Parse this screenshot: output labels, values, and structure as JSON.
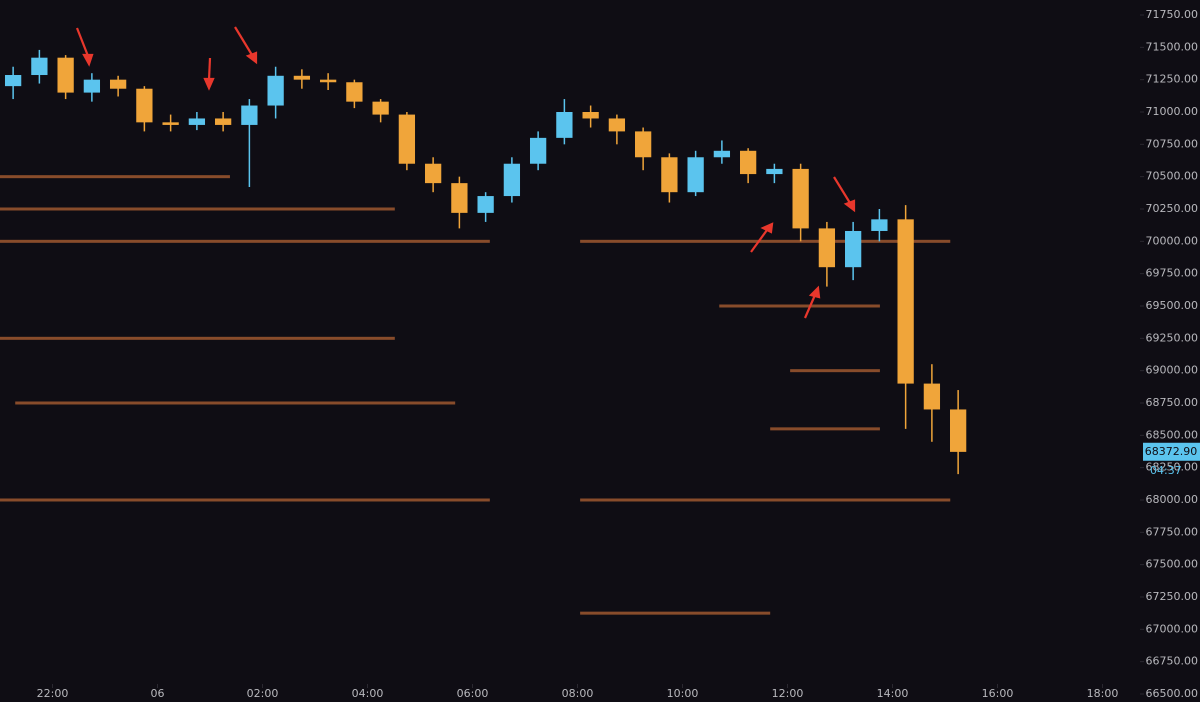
{
  "chart_data": {
    "type": "candlestick",
    "background": "#0f0d14",
    "up_color": "#5bc4ee",
    "down_color": "#f0a53a",
    "heat_color": "#d9773a",
    "x": [
      0.25,
      0.75,
      1.25,
      1.75,
      2.25,
      2.75,
      3.25,
      3.75,
      4.25,
      4.75,
      5.25,
      5.75,
      6.25,
      6.75,
      7.25,
      7.75,
      8.25,
      8.75,
      9.25,
      9.75,
      10.25,
      10.75,
      11.25,
      11.75,
      12.25,
      12.75,
      13.25,
      13.75,
      14.25,
      14.75,
      15.25,
      15.75,
      16.25,
      16.75,
      17.25,
      17.75,
      18.25
    ],
    "open": [
      71200,
      71286,
      71420,
      71150,
      71250,
      71180,
      70920,
      70900,
      70950,
      70900,
      71050,
      71280,
      71250,
      71230,
      71080,
      70980,
      70600,
      70450,
      70220,
      70350,
      70600,
      70800,
      71000,
      70950,
      70850,
      70650,
      70380,
      70650,
      70700,
      70520,
      70560,
      70100,
      69800,
      70080,
      70170,
      68900,
      68700
    ],
    "high": [
      71350,
      71480,
      71440,
      71300,
      71280,
      71200,
      70980,
      71000,
      71000,
      71100,
      71350,
      71330,
      71300,
      71250,
      71100,
      71000,
      70650,
      70500,
      70380,
      70650,
      70850,
      71100,
      71050,
      70980,
      70880,
      70680,
      70700,
      70780,
      70720,
      70600,
      70600,
      70150,
      70150,
      70250,
      70280,
      69050,
      68850
    ],
    "low": [
      71100,
      71220,
      71100,
      71080,
      71120,
      70850,
      70850,
      70860,
      70850,
      70420,
      70950,
      71180,
      71170,
      71030,
      70920,
      70550,
      70380,
      70100,
      70150,
      70300,
      70550,
      70750,
      70880,
      70750,
      70550,
      70300,
      70350,
      70600,
      70450,
      70450,
      70000,
      69650,
      69700,
      70000,
      68550,
      68450,
      68200
    ],
    "close": [
      71286,
      71420,
      71150,
      71250,
      71180,
      70920,
      70900,
      70950,
      70900,
      71050,
      71280,
      71250,
      71230,
      71080,
      70980,
      70600,
      70450,
      70220,
      70350,
      70600,
      70800,
      71000,
      70950,
      70850,
      70650,
      70380,
      70650,
      70700,
      70520,
      70560,
      70100,
      69800,
      70080,
      70170,
      68900,
      68700,
      68372
    ],
    "heatmap_levels": [
      {
        "price": 70500,
        "from": 0,
        "to": 4.38
      },
      {
        "price": 70250,
        "from": 0,
        "to": 7.52
      },
      {
        "price": 70000,
        "from": 0,
        "to": 9.33
      },
      {
        "price": 70000,
        "from": 11.05,
        "to": 18.1
      },
      {
        "price": 69500,
        "from": 13.7,
        "to": 16.76
      },
      {
        "price": 69250,
        "from": 0,
        "to": 7.52
      },
      {
        "price": 69000,
        "from": 15.05,
        "to": 16.76
      },
      {
        "price": 68750,
        "from": 0.29,
        "to": 8.67
      },
      {
        "price": 68550,
        "from": 14.67,
        "to": 16.76
      },
      {
        "price": 68000,
        "from": 0,
        "to": 9.33
      },
      {
        "price": 68000,
        "from": 11.05,
        "to": 18.1
      },
      {
        "price": 67125,
        "from": 11.05,
        "to": 14.67
      }
    ],
    "last_price": {
      "value": 68372.9,
      "label": "68372.90"
    },
    "countdown": "04:37",
    "xlim": [
      0,
      21.714
    ],
    "xticks": [
      {
        "value": 1,
        "label": "22:00"
      },
      {
        "value": 3,
        "label": "06"
      },
      {
        "value": 5,
        "label": "02:00"
      },
      {
        "value": 7,
        "label": "04:00"
      },
      {
        "value": 9,
        "label": "06:00"
      },
      {
        "value": 11,
        "label": "08:00"
      },
      {
        "value": 13,
        "label": "10:00"
      },
      {
        "value": 15,
        "label": "12:00"
      },
      {
        "value": 17,
        "label": "14:00"
      },
      {
        "value": 19,
        "label": "16:00"
      },
      {
        "value": 21,
        "label": "18:00"
      }
    ],
    "ylim": [
      66438,
      71866
    ],
    "yticks": [
      {
        "value": 71750,
        "label": "71750.00"
      },
      {
        "value": 71500,
        "label": "71500.00"
      },
      {
        "value": 71250,
        "label": "71250.00"
      },
      {
        "value": 71000,
        "label": "71000.00"
      },
      {
        "value": 70750,
        "label": "70750.00"
      },
      {
        "value": 70500,
        "label": "70500.00"
      },
      {
        "value": 70250,
        "label": "70250.00"
      },
      {
        "value": 70000,
        "label": "70000.00"
      },
      {
        "value": 69750,
        "label": "69750.00"
      },
      {
        "value": 69500,
        "label": "69500.00"
      },
      {
        "value": 69250,
        "label": "69250.00"
      },
      {
        "value": 69000,
        "label": "69000.00"
      },
      {
        "value": 68750,
        "label": "68750.00"
      },
      {
        "value": 68500,
        "label": "68500.00"
      },
      {
        "value": 68250,
        "label": "68250.00"
      },
      {
        "value": 68000,
        "label": "68000.00"
      },
      {
        "value": 67750,
        "label": "67750.00"
      },
      {
        "value": 67500,
        "label": "67500.00"
      },
      {
        "value": 67250,
        "label": "67250.00"
      },
      {
        "value": 67000,
        "label": "67000.00"
      },
      {
        "value": 66750,
        "label": "66750.00"
      },
      {
        "value": 66500,
        "label": "66500.00"
      }
    ]
  }
}
